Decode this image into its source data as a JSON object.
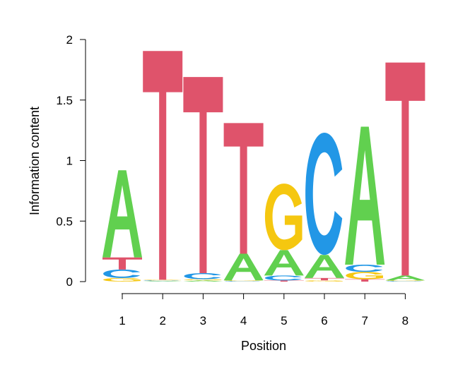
{
  "chart_data": {
    "type": "sequence-logo",
    "title": "",
    "xlabel": "Position",
    "ylabel": "Information content",
    "ylim": [
      0,
      2
    ],
    "y_ticks": [
      "0",
      "0.5",
      "1",
      "1.5",
      "2"
    ],
    "y_tick_values": [
      0,
      0.5,
      1,
      1.5,
      2
    ],
    "positions": [
      "1",
      "2",
      "3",
      "4",
      "5",
      "6",
      "7",
      "8"
    ],
    "letter_colors": {
      "A": "#61D04F",
      "C": "#2297E6",
      "G": "#F5C710",
      "T": "#DF536B"
    },
    "stacks": [
      [
        {
          "letter": "G",
          "height": 0.03
        },
        {
          "letter": "C",
          "height": 0.07
        },
        {
          "letter": "T",
          "height": 0.1
        },
        {
          "letter": "A",
          "height": 0.72
        }
      ],
      [
        {
          "letter": "A",
          "height": 0.005
        },
        {
          "letter": "C",
          "height": 0.005
        },
        {
          "letter": "G",
          "height": 0.005
        },
        {
          "letter": "T",
          "height": 1.89
        }
      ],
      [
        {
          "letter": "A",
          "height": 0.01
        },
        {
          "letter": "G",
          "height": 0.01
        },
        {
          "letter": "C",
          "height": 0.05
        },
        {
          "letter": "T",
          "height": 1.62
        }
      ],
      [
        {
          "letter": "C",
          "height": 0.005
        },
        {
          "letter": "G",
          "height": 0.005
        },
        {
          "letter": "A",
          "height": 0.22
        },
        {
          "letter": "T",
          "height": 1.08
        }
      ],
      [
        {
          "letter": "T",
          "height": 0.01
        },
        {
          "letter": "C",
          "height": 0.04
        },
        {
          "letter": "A",
          "height": 0.21
        },
        {
          "letter": "G",
          "height": 0.55
        }
      ],
      [
        {
          "letter": "G",
          "height": 0.01
        },
        {
          "letter": "T",
          "height": 0.02
        },
        {
          "letter": "A",
          "height": 0.19
        },
        {
          "letter": "C",
          "height": 1.01
        }
      ],
      [
        {
          "letter": "T",
          "height": 0.02
        },
        {
          "letter": "G",
          "height": 0.06
        },
        {
          "letter": "C",
          "height": 0.06
        },
        {
          "letter": "A",
          "height": 1.14
        }
      ],
      [
        {
          "letter": "C",
          "height": 0.005
        },
        {
          "letter": "G",
          "height": 0.005
        },
        {
          "letter": "A",
          "height": 0.04
        },
        {
          "letter": "T",
          "height": 1.76
        }
      ]
    ]
  }
}
